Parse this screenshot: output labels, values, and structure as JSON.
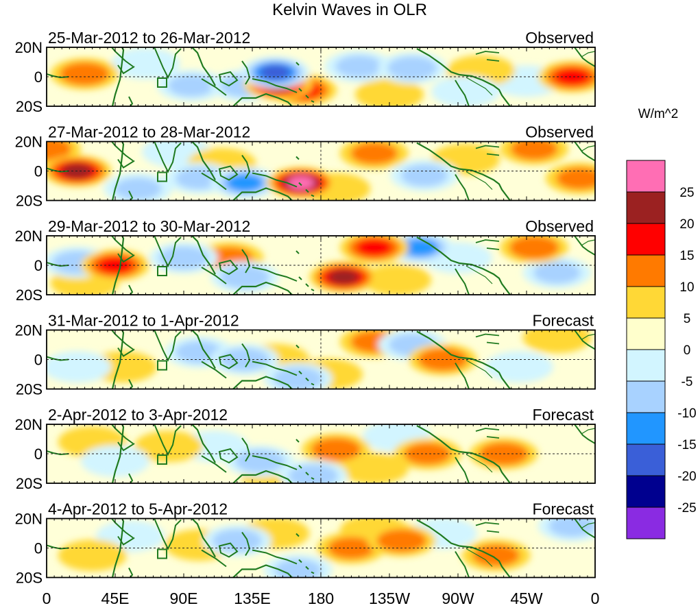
{
  "chart_data": {
    "type": "heatmap",
    "title": "Kelvin Waves in OLR",
    "units": "W/m^2",
    "x_ticks": [
      "0",
      "45E",
      "90E",
      "135E",
      "180",
      "135W",
      "90W",
      "45W",
      "0"
    ],
    "y_ticks": [
      "20N",
      "0",
      "20S"
    ],
    "xlim": [
      0,
      360
    ],
    "ylim": [
      -20,
      20
    ],
    "colorbar": {
      "levels": [
        "25",
        "20",
        "15",
        "10",
        "5",
        "0",
        "-5",
        "-10",
        "-15",
        "-20",
        "-25"
      ],
      "colors": [
        "#FF6EB4",
        "#9B2121",
        "#FF0000",
        "#FF7A00",
        "#FFD836",
        "#FFFFCC",
        "#D2F5FF",
        "#A8D2FF",
        "#2196FF",
        "#3A5FD8",
        "#00008F",
        "#8A2BE2"
      ]
    },
    "panels": [
      {
        "period": "25-Mar-2012 to 26-Mar-2012",
        "label": "Observed",
        "anomalies": [
          {
            "lon": 152,
            "lat": -5,
            "value": 20
          },
          {
            "lon": 168,
            "lat": -9,
            "value": 15
          },
          {
            "lon": 130,
            "lat": -6,
            "value": -12
          },
          {
            "lon": 95,
            "lat": -6,
            "value": -10
          },
          {
            "lon": 150,
            "lat": 3,
            "value": -20
          },
          {
            "lon": 205,
            "lat": 7,
            "value": -10
          },
          {
            "lon": 240,
            "lat": 6,
            "value": -12
          },
          {
            "lon": 25,
            "lat": 2,
            "value": 12
          },
          {
            "lon": 345,
            "lat": 0,
            "value": 15
          },
          {
            "lon": 315,
            "lat": -3,
            "value": -8
          },
          {
            "lon": 285,
            "lat": 4,
            "value": 8
          },
          {
            "lon": 65,
            "lat": 9,
            "value": -8
          },
          {
            "lon": 275,
            "lat": -10,
            "value": -8
          },
          {
            "lon": 225,
            "lat": -12,
            "value": 8
          }
        ]
      },
      {
        "period": "27-Mar-2012 to 28-Mar-2012",
        "label": "Observed",
        "anomalies": [
          {
            "lon": 20,
            "lat": 0,
            "value": 20
          },
          {
            "lon": 0,
            "lat": 15,
            "value": 12
          },
          {
            "lon": 167,
            "lat": -8,
            "value": 25
          },
          {
            "lon": 130,
            "lat": -8,
            "value": -15
          },
          {
            "lon": 100,
            "lat": -5,
            "value": -10
          },
          {
            "lon": 215,
            "lat": 12,
            "value": 10
          },
          {
            "lon": 190,
            "lat": -12,
            "value": 8
          },
          {
            "lon": 248,
            "lat": -3,
            "value": -10
          },
          {
            "lon": 275,
            "lat": 8,
            "value": 8
          },
          {
            "lon": 320,
            "lat": 15,
            "value": 10
          },
          {
            "lon": 350,
            "lat": -5,
            "value": 10
          },
          {
            "lon": 60,
            "lat": -12,
            "value": -10
          },
          {
            "lon": 85,
            "lat": 13,
            "value": -8
          },
          {
            "lon": 115,
            "lat": 5,
            "value": 8
          }
        ]
      },
      {
        "period": "29-Mar-2012 to 30-Mar-2012",
        "label": "Observed",
        "anomalies": [
          {
            "lon": 195,
            "lat": -8,
            "value": 20
          },
          {
            "lon": 45,
            "lat": 0,
            "value": 15
          },
          {
            "lon": 20,
            "lat": 2,
            "value": -12
          },
          {
            "lon": 245,
            "lat": 12,
            "value": -15
          },
          {
            "lon": 215,
            "lat": 12,
            "value": 15
          },
          {
            "lon": 130,
            "lat": -8,
            "value": -12
          },
          {
            "lon": 90,
            "lat": 5,
            "value": -12
          },
          {
            "lon": 120,
            "lat": 5,
            "value": 10
          },
          {
            "lon": 270,
            "lat": 5,
            "value": -8
          },
          {
            "lon": 320,
            "lat": 12,
            "value": 12
          },
          {
            "lon": 335,
            "lat": -5,
            "value": -10
          },
          {
            "lon": 25,
            "lat": -12,
            "value": 8
          },
          {
            "lon": 230,
            "lat": -10,
            "value": 8
          }
        ]
      },
      {
        "period": "31-Mar-2012 to 1-Apr-2012",
        "label": "Forecast",
        "anomalies": [
          {
            "lon": 260,
            "lat": 0,
            "value": 12
          },
          {
            "lon": 215,
            "lat": 12,
            "value": 10
          },
          {
            "lon": 240,
            "lat": 10,
            "value": -10
          },
          {
            "lon": 130,
            "lat": 0,
            "value": -12
          },
          {
            "lon": 150,
            "lat": 0,
            "value": 8
          },
          {
            "lon": 165,
            "lat": -13,
            "value": -12
          },
          {
            "lon": 100,
            "lat": 5,
            "value": -10
          },
          {
            "lon": 50,
            "lat": -5,
            "value": 8
          },
          {
            "lon": 20,
            "lat": -5,
            "value": -8
          },
          {
            "lon": 185,
            "lat": -10,
            "value": 8
          },
          {
            "lon": 310,
            "lat": -5,
            "value": -8
          },
          {
            "lon": 335,
            "lat": 15,
            "value": 8
          }
        ]
      },
      {
        "period": "2-Apr-2012 to 3-Apr-2012",
        "label": "Forecast",
        "anomalies": [
          {
            "lon": 190,
            "lat": 3,
            "value": 12
          },
          {
            "lon": 250,
            "lat": 0,
            "value": 10
          },
          {
            "lon": 300,
            "lat": 0,
            "value": 12
          },
          {
            "lon": 140,
            "lat": -5,
            "value": -12
          },
          {
            "lon": 175,
            "lat": -15,
            "value": -12
          },
          {
            "lon": 110,
            "lat": 5,
            "value": -8
          },
          {
            "lon": 80,
            "lat": 5,
            "value": 8
          },
          {
            "lon": 230,
            "lat": 12,
            "value": -8
          },
          {
            "lon": 215,
            "lat": -10,
            "value": 8
          },
          {
            "lon": 30,
            "lat": 8,
            "value": 8
          },
          {
            "lon": 45,
            "lat": -5,
            "value": -8
          },
          {
            "lon": 150,
            "lat": -15,
            "value": 8
          }
        ]
      },
      {
        "period": "4-Apr-2012 to 5-Apr-2012",
        "label": "Forecast",
        "anomalies": [
          {
            "lon": 200,
            "lat": 0,
            "value": 10
          },
          {
            "lon": 233,
            "lat": 5,
            "value": 12
          },
          {
            "lon": 295,
            "lat": -5,
            "value": 10
          },
          {
            "lon": 125,
            "lat": 5,
            "value": -12
          },
          {
            "lon": 165,
            "lat": -15,
            "value": -10
          },
          {
            "lon": 100,
            "lat": 2,
            "value": 8
          },
          {
            "lon": 55,
            "lat": 8,
            "value": -8
          },
          {
            "lon": 30,
            "lat": -5,
            "value": 8
          },
          {
            "lon": 215,
            "lat": 12,
            "value": 8
          },
          {
            "lon": 260,
            "lat": 10,
            "value": -8
          },
          {
            "lon": 345,
            "lat": 15,
            "value": -10
          },
          {
            "lon": 150,
            "lat": 10,
            "value": 8
          }
        ]
      }
    ]
  }
}
